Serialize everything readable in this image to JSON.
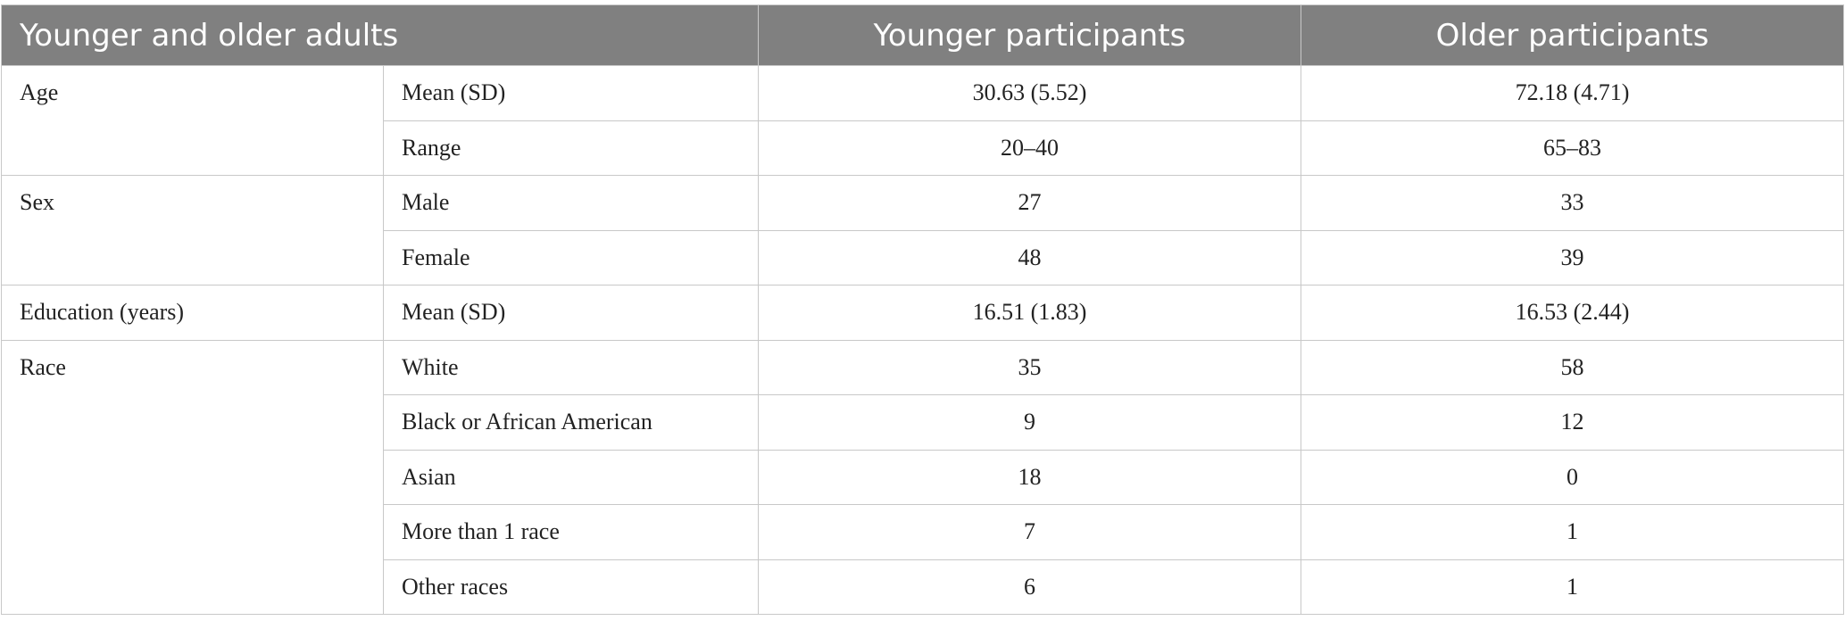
{
  "table": {
    "header": {
      "col1": "Younger and older adults",
      "col2": "Younger participants",
      "col3": "Older participants"
    },
    "groups": [
      {
        "label": "Age",
        "rows": [
          {
            "sub": "Mean (SD)",
            "younger": "30.63 (5.52)",
            "older": "72.18 (4.71)"
          },
          {
            "sub": "Range",
            "younger": "20–40",
            "older": "65–83"
          }
        ]
      },
      {
        "label": "Sex",
        "rows": [
          {
            "sub": "Male",
            "younger": "27",
            "older": "33"
          },
          {
            "sub": "Female",
            "younger": "48",
            "older": "39"
          }
        ]
      },
      {
        "label": "Education (years)",
        "rows": [
          {
            "sub": "Mean (SD)",
            "younger": "16.51 (1.83)",
            "older": "16.53 (2.44)"
          }
        ]
      },
      {
        "label": "Race",
        "rows": [
          {
            "sub": "White",
            "younger": "35",
            "older": "58"
          },
          {
            "sub": "Black or African American",
            "younger": "9",
            "older": "12"
          },
          {
            "sub": "Asian",
            "younger": "18",
            "older": "0"
          },
          {
            "sub": "More than 1 race",
            "younger": "7",
            "older": "1"
          },
          {
            "sub": "Other races",
            "younger": "6",
            "older": "1"
          }
        ]
      }
    ]
  }
}
